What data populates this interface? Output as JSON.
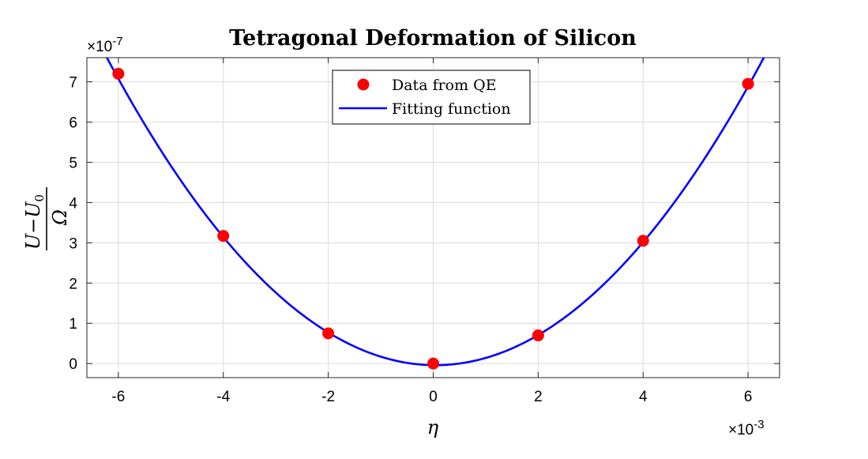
{
  "chart_data": {
    "type": "scatter",
    "title": "Tetragonal Deformation of Silicon",
    "xlabel": "η",
    "ylabel": {
      "numerator_symbol": "U",
      "numerator_minus": "−",
      "numerator_sub_base": "U",
      "numerator_subscript": "0",
      "denominator": "Ω"
    },
    "x_exponent_label": "×10",
    "x_exponent_power": "-3",
    "y_exponent_label": "×10",
    "y_exponent_power": "-7",
    "xlim": [
      -6.6,
      6.6
    ],
    "ylim": [
      -0.35,
      7.6
    ],
    "xticks": [
      -6,
      -4,
      -2,
      0,
      2,
      4,
      6
    ],
    "xtick_labels": [
      "-6",
      "-4",
      "-2",
      "0",
      "2",
      "4",
      "6"
    ],
    "yticks": [
      0,
      1,
      2,
      3,
      4,
      5,
      6,
      7
    ],
    "ytick_labels": [
      "0",
      "1",
      "2",
      "3",
      "4",
      "5",
      "6",
      "7"
    ],
    "grid": true,
    "legend_position": "top-center",
    "series": [
      {
        "name": "Data from QE",
        "kind": "scatter",
        "color": "#ff0000",
        "x": [
          -6,
          -4,
          -2,
          0,
          2,
          4,
          6
        ],
        "y": [
          7.2,
          3.17,
          0.75,
          0.0,
          0.7,
          3.05,
          6.95
        ]
      },
      {
        "name": "Fitting function",
        "kind": "line",
        "color": "#0000ff",
        "fit": {
          "a": 0.195,
          "b": -0.016,
          "c": -0.04
        }
      }
    ]
  }
}
